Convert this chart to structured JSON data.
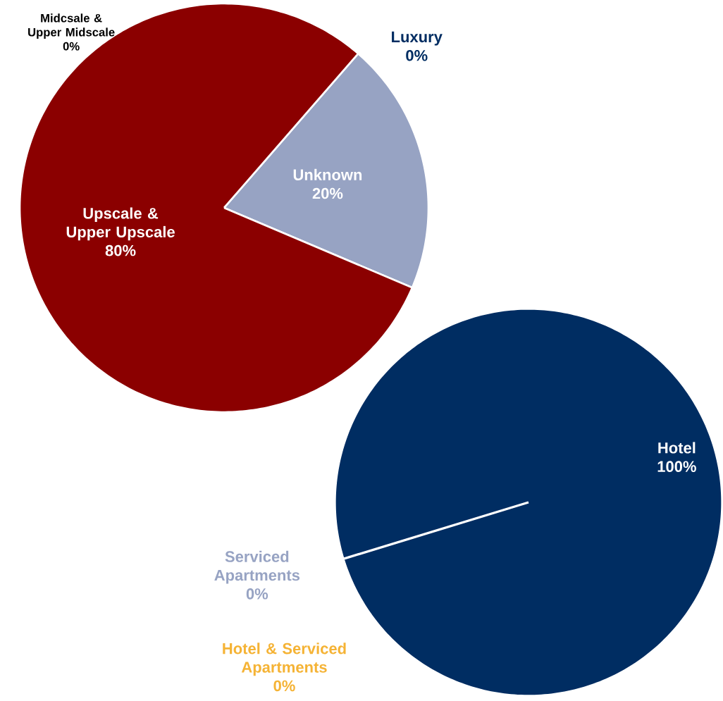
{
  "chart_data": [
    {
      "type": "pie",
      "categories": [
        "Luxury",
        "Unknown",
        "Upscale & Upper Upscale",
        "Midcsale & Upper Midscale"
      ],
      "values": [
        0,
        20,
        80,
        0
      ],
      "colors": [
        "#002d62",
        "#97a3c3",
        "#8b0000",
        "#000000"
      ],
      "value_labels": [
        "0%",
        "20%",
        "80%",
        "0%"
      ]
    },
    {
      "type": "pie",
      "categories": [
        "Hotel",
        "Serviced Apartments",
        "Hotel & Serviced Apartments"
      ],
      "values": [
        100,
        0,
        0
      ],
      "colors": [
        "#002d62",
        "#97a3c3",
        "#f5b335"
      ],
      "value_labels": [
        "100%",
        "0%",
        "0%"
      ]
    }
  ]
}
